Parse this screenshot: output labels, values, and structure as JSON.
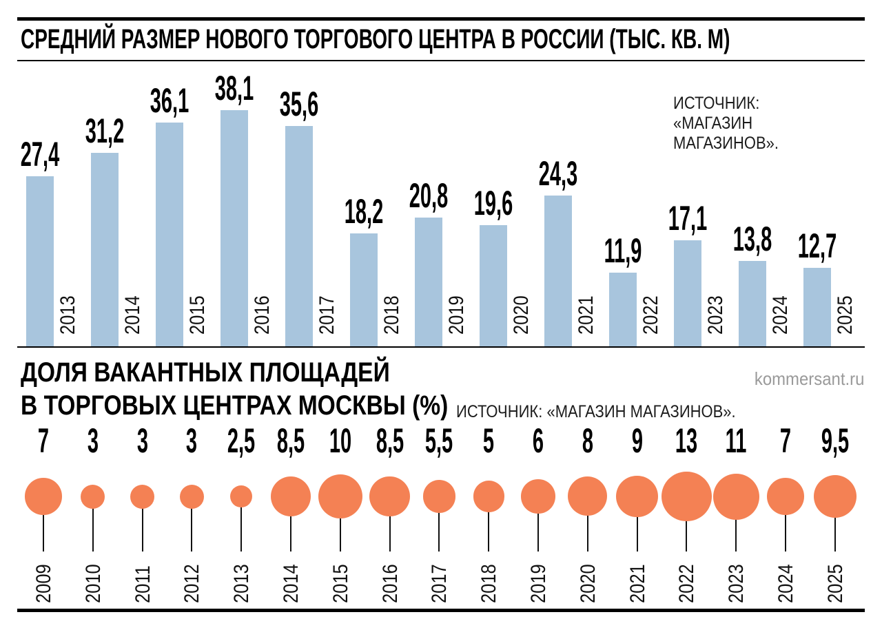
{
  "page": {
    "watermark": "kommersant.ru"
  },
  "chart_data": [
    {
      "type": "bar",
      "title": "СРЕДНИЙ РАЗМЕР НОВОГО ТОРГОВОГО ЦЕНТРА В РОССИИ (ТЫС. КВ. М)",
      "source_lines": [
        "ИСТОЧНИК:",
        "«МАГАЗИН",
        "МАГАЗИНОВ»."
      ],
      "categories": [
        "2013",
        "2014",
        "2015",
        "2016",
        "2017",
        "2018",
        "2019",
        "2020",
        "2021",
        "2022",
        "2023",
        "2024",
        "2025"
      ],
      "values": [
        27.4,
        31.2,
        36.1,
        38.1,
        35.6,
        18.2,
        20.8,
        19.6,
        24.3,
        11.9,
        17.1,
        13.8,
        12.7
      ],
      "value_labels": [
        "27,4",
        "31,2",
        "36,1",
        "38,1",
        "35,6",
        "18,2",
        "20,8",
        "19,6",
        "24,3",
        "11,9",
        "17,1",
        "13,8",
        "12,7"
      ],
      "bar_color": "#a8c5dd",
      "xlabel": "",
      "ylabel": "",
      "ylim": [
        0,
        40
      ],
      "grid": false,
      "legend": "none"
    },
    {
      "type": "bubble",
      "title": "ДОЛЯ ВАКАНТНЫХ ПЛОЩАДЕЙ В ТОРГОВЫХ ЦЕНТРАХ МОСКВЫ (%)",
      "title_lines": [
        "ДОЛЯ ВАКАНТНЫХ ПЛОЩАДЕЙ",
        "В ТОРГОВЫХ ЦЕНТРАХ МОСКВЫ (%)"
      ],
      "source": "ИСТОЧНИК: «МАГАЗИН МАГАЗИНОВ».",
      "categories": [
        "2009",
        "2010",
        "2011",
        "2012",
        "2013",
        "2014",
        "2015",
        "2016",
        "2017",
        "2018",
        "2019",
        "2020",
        "2021",
        "2022",
        "2023",
        "2024",
        "2025"
      ],
      "values": [
        7,
        3,
        3,
        3,
        2.5,
        8.5,
        10,
        8.5,
        5.5,
        5,
        6,
        8,
        9,
        13,
        11,
        7,
        9.5
      ],
      "value_labels": [
        "7",
        "3",
        "3",
        "3",
        "2,5",
        "8,5",
        "10",
        "8,5",
        "5,5",
        "5",
        "6",
        "8",
        "9",
        "13",
        "11",
        "7",
        "9,5"
      ],
      "bubble_color": "#f48154",
      "xlabel": "",
      "ylabel": "",
      "size_encoding": "area",
      "grid": false,
      "legend": "none"
    }
  ]
}
